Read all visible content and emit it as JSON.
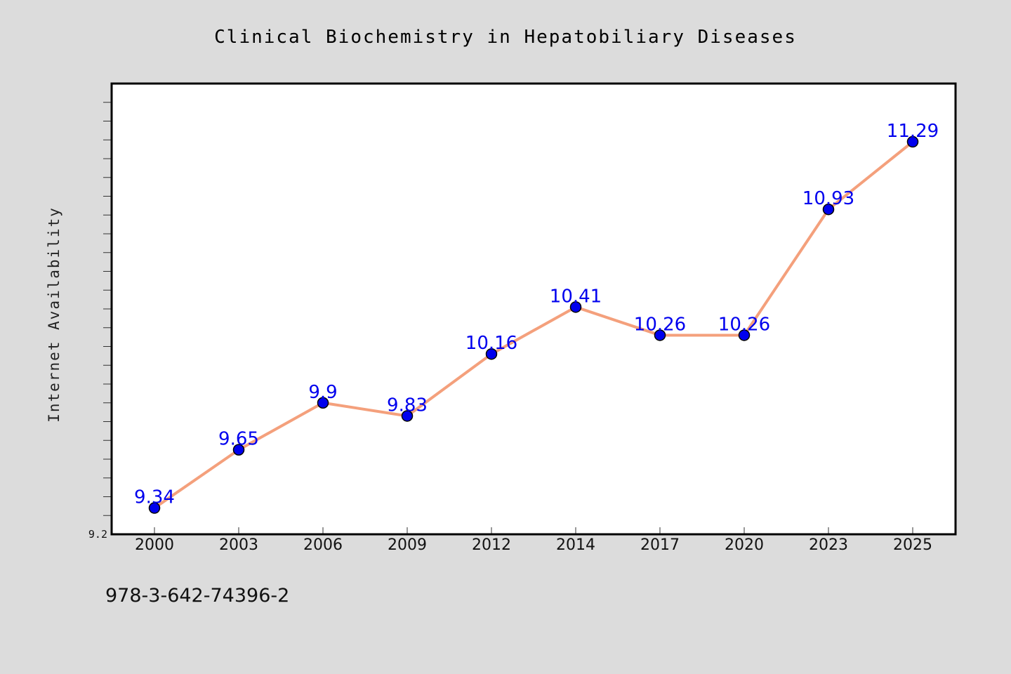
{
  "chart_data": {
    "type": "line",
    "title": "Clinical Biochemistry in Hepatobiliary Diseases",
    "ylabel": "Internet Availability",
    "xlabel": "",
    "categories": [
      "2000",
      "2003",
      "2006",
      "2009",
      "2012",
      "2014",
      "2017",
      "2020",
      "2023",
      "2025"
    ],
    "series": [
      {
        "values": [
          9.34,
          9.65,
          9.9,
          9.83,
          10.16,
          10.41,
          10.26,
          10.26,
          10.93,
          11.29
        ],
        "labels": [
          "9.34",
          "9.65",
          "9.9",
          "9.83",
          "10.16",
          "10.41",
          "10.26",
          "10.26",
          "10.93",
          "11.29"
        ]
      }
    ],
    "ylim": [
      9.2,
      11.6
    ],
    "yticks_labeled": [
      "9.2"
    ],
    "grid": false,
    "legend": "none"
  },
  "footer_code": "978-3-642-74396-2",
  "colors": {
    "background": "#dcdcdc",
    "plot_background": "#ffffff",
    "line": "#f4a07c",
    "marker": "#0000ee",
    "data_label": "#0000ee",
    "frame": "#000000"
  }
}
